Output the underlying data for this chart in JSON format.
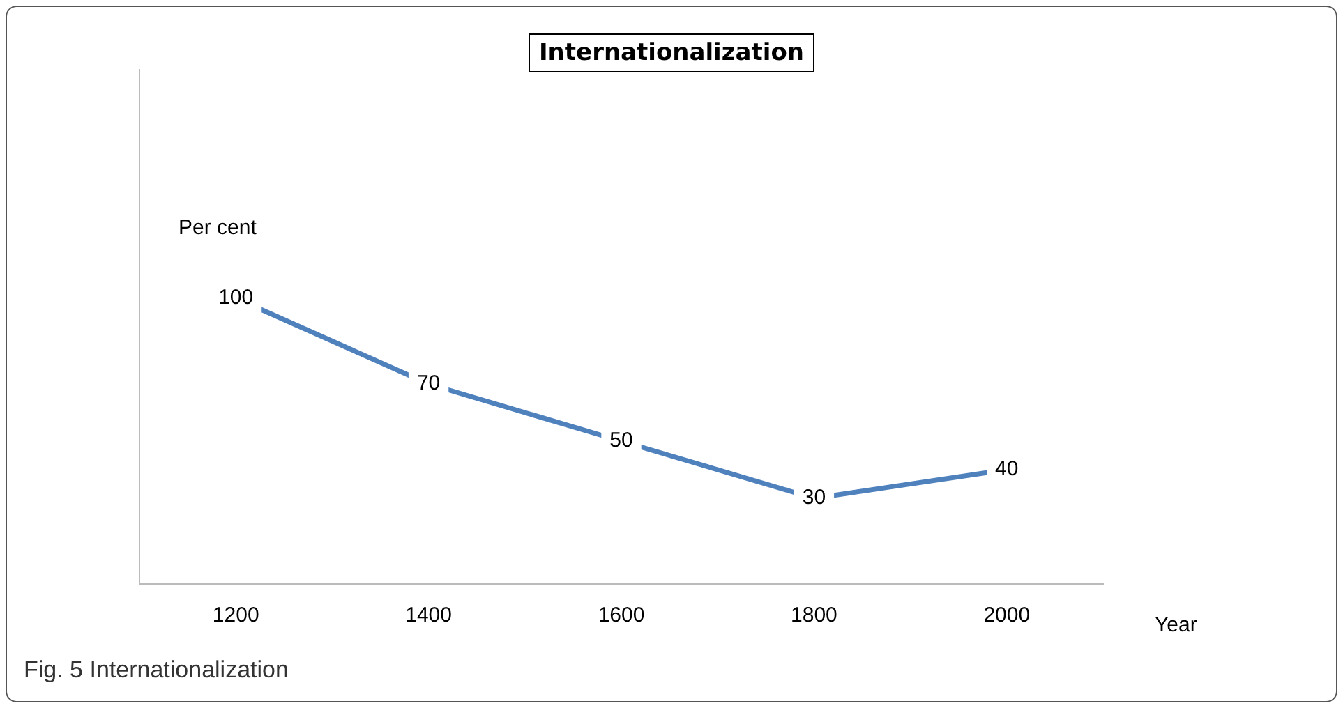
{
  "chart_data": {
    "type": "line",
    "title": "Internationalization",
    "ylabel": "Per cent",
    "xlabel": "Year",
    "categories": [
      "1200",
      "1400",
      "1600",
      "1800",
      "2000"
    ],
    "values": [
      100,
      70,
      50,
      30,
      40
    ],
    "color": "#4f81bd",
    "data_labels": true,
    "grid": false,
    "legend": false,
    "marker": "none",
    "annotations": [
      "Fig. 5 Internationalization"
    ]
  }
}
